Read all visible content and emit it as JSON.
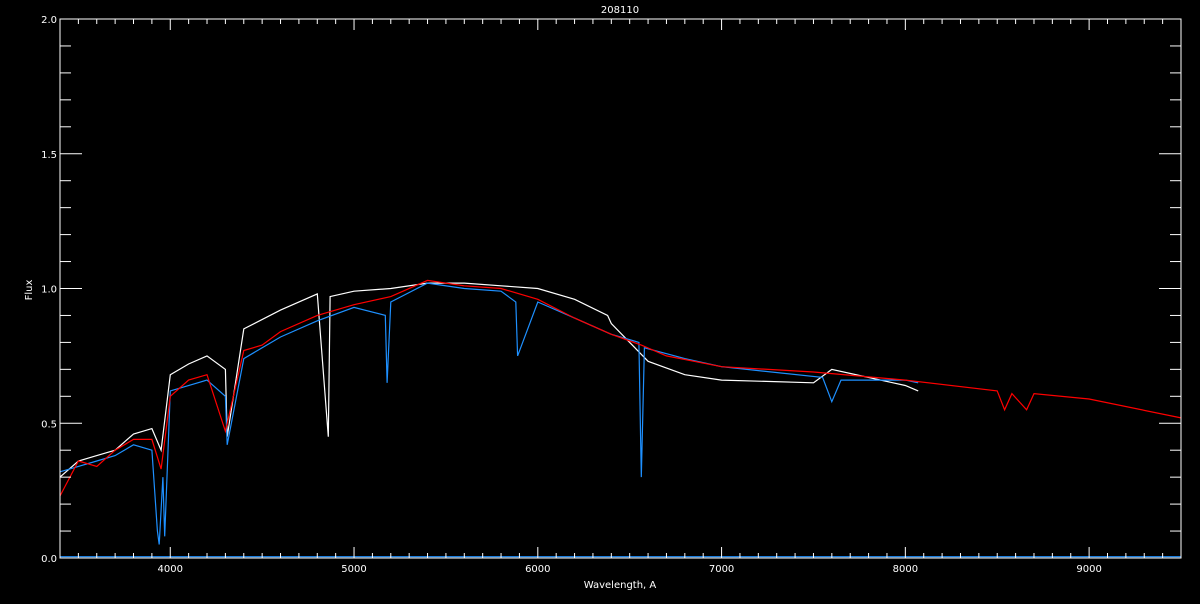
{
  "chart_data": {
    "type": "line",
    "title": "208110",
    "xlabel": "Wavelength, A",
    "ylabel": "Flux",
    "xlim": [
      3400,
      9500
    ],
    "ylim": [
      0.0,
      2.0
    ],
    "x_major_ticks": [
      4000,
      5000,
      6000,
      7000,
      8000,
      9000
    ],
    "x_minor_step": 100,
    "y_major_ticks": [
      "0.0",
      "0.5",
      "1.0",
      "1.5",
      "2.0"
    ],
    "y_minor_step": 0.1,
    "grid": false,
    "background": "#000000",
    "series": [
      {
        "color": "#ffffff",
        "x": [
          3400,
          3500,
          3600,
          3700,
          3800,
          3900,
          3950,
          4000,
          4100,
          4200,
          4300,
          4310,
          4400,
          4600,
          4800,
          4860,
          4870,
          5000,
          5200,
          5400,
          5600,
          5800,
          6000,
          6200,
          6380,
          6400,
          6500,
          6600,
          6800,
          7000,
          7500,
          7600,
          8000,
          8070
        ],
        "y": [
          0.3,
          0.36,
          0.38,
          0.4,
          0.46,
          0.48,
          0.4,
          0.68,
          0.72,
          0.75,
          0.7,
          0.45,
          0.85,
          0.92,
          0.98,
          0.45,
          0.97,
          0.99,
          1.0,
          1.02,
          1.02,
          1.01,
          1.0,
          0.96,
          0.9,
          0.87,
          0.8,
          0.73,
          0.68,
          0.66,
          0.65,
          0.7,
          0.64,
          0.62
        ]
      },
      {
        "color": "#1e90ff",
        "x": [
          3400,
          3500,
          3600,
          3700,
          3800,
          3900,
          3930,
          3940,
          3960,
          3970,
          4000,
          4200,
          4300,
          4310,
          4400,
          4600,
          4800,
          5000,
          5170,
          5180,
          5200,
          5400,
          5600,
          5800,
          5880,
          5890,
          6000,
          6200,
          6400,
          6550,
          6563,
          6580,
          6800,
          7000,
          7550,
          7600,
          7650,
          8000,
          8070
        ],
        "y": [
          0.32,
          0.34,
          0.36,
          0.38,
          0.42,
          0.4,
          0.1,
          0.05,
          0.3,
          0.08,
          0.62,
          0.66,
          0.6,
          0.42,
          0.74,
          0.82,
          0.88,
          0.93,
          0.9,
          0.65,
          0.95,
          1.02,
          1.0,
          0.99,
          0.95,
          0.75,
          0.95,
          0.89,
          0.83,
          0.8,
          0.3,
          0.78,
          0.74,
          0.71,
          0.67,
          0.58,
          0.66,
          0.66,
          0.65
        ]
      },
      {
        "color": "#ff0000",
        "x": [
          3400,
          3500,
          3600,
          3700,
          3800,
          3900,
          3950,
          4000,
          4100,
          4200,
          4300,
          4400,
          4500,
          4600,
          4800,
          5000,
          5200,
          5400,
          5600,
          5800,
          6000,
          6200,
          6400,
          6563,
          6700,
          7000,
          7500,
          8000,
          8500,
          8540,
          8580,
          8660,
          8700,
          9000,
          9500
        ],
        "y": [
          0.23,
          0.36,
          0.34,
          0.4,
          0.44,
          0.44,
          0.33,
          0.6,
          0.66,
          0.68,
          0.47,
          0.77,
          0.79,
          0.84,
          0.9,
          0.94,
          0.97,
          1.03,
          1.01,
          1.0,
          0.96,
          0.89,
          0.83,
          0.79,
          0.75,
          0.71,
          0.69,
          0.66,
          0.62,
          0.55,
          0.61,
          0.55,
          0.61,
          0.59,
          0.52
        ]
      },
      {
        "color": "#1e90ff",
        "x": [
          3400,
          9500
        ],
        "y": [
          0.005,
          0.005
        ]
      }
    ]
  }
}
